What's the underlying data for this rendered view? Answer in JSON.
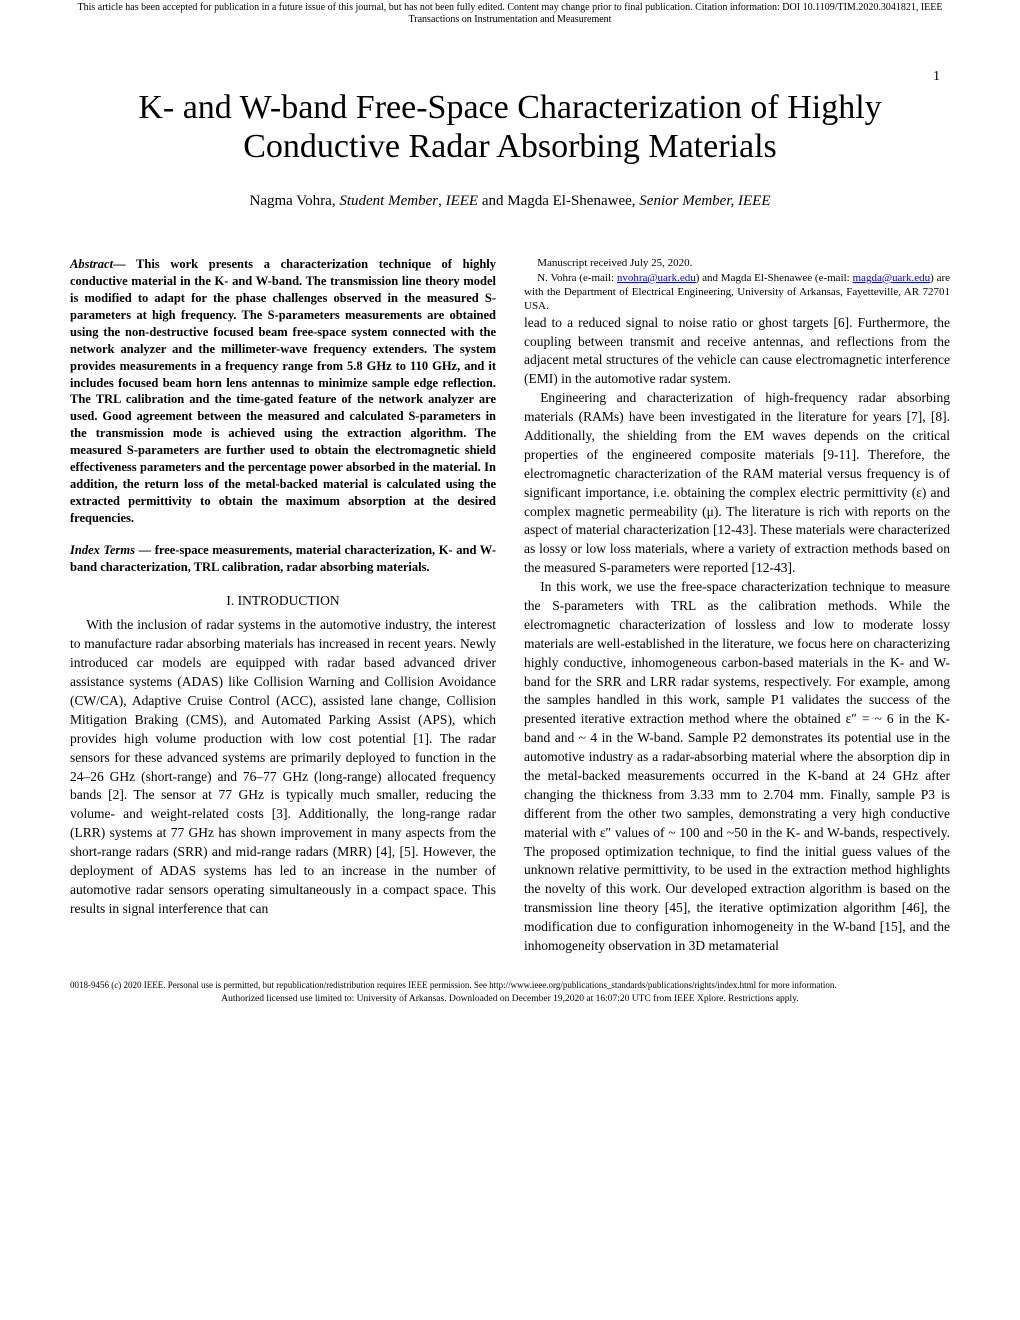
{
  "header": {
    "notice_line1": "This article has been accepted for publication in a future issue of this journal, but has not been fully edited. Content may change prior to final publication. Citation information: DOI 10.1109/TIM.2020.3041821, IEEE",
    "notice_line2": "Transactions on Instrumentation and Measurement",
    "page_number": "1"
  },
  "title": "K- and W-band Free-Space Characterization of Highly Conductive Radar Absorbing Materials",
  "authors": {
    "a1_name": "Nagma Vohra, ",
    "a1_role": "Student Member",
    "sep1": ", ",
    "org1": "IEEE",
    "and": " and ",
    "a2_name": "Magda El-Shenawee, ",
    "a2_role": "Senior Member, IEEE"
  },
  "abstract": {
    "label": "Abstract",
    "dash": "— ",
    "text": "This work presents a characterization technique of highly conductive material in the K- and W-band. The transmission line theory model is modified to adapt for the phase challenges observed in the measured S-parameters at high frequency. The S-parameters measurements are obtained using the non-destructive focused beam free-space system connected with the network analyzer and the millimeter-wave frequency extenders. The system provides measurements in a frequency range from 5.8 GHz to 110 GHz, and it includes focused beam horn lens antennas to minimize sample edge reflection. The TRL calibration and the time-gated feature of the network analyzer are used. Good agreement between the measured and calculated S-parameters in the transmission mode is achieved using the extraction algorithm. The measured S-parameters are further used to obtain the electromagnetic shield effectiveness parameters and the percentage power absorbed in the material. In addition, the return loss of the metal-backed material is calculated using the extracted permittivity to obtain the maximum absorption at the desired frequencies."
  },
  "index_terms": {
    "label": "Index Terms",
    "dash": " — ",
    "text": "free-space measurements, material characterization, K- and W-band characterization, TRL calibration, radar absorbing materials."
  },
  "section1": {
    "heading": "I.   INTRODUCTION",
    "p1": "With the inclusion of radar systems in the automotive industry, the interest to manufacture radar absorbing materials has increased in recent years. Newly introduced car models are equipped with radar based advanced driver assistance systems (ADAS) like Collision Warning and Collision Avoidance (CW/CA), Adaptive Cruise Control (ACC), assisted lane change, Collision Mitigation Braking (CMS), and Automated Parking Assist (APS), which provides high volume production with low cost potential [1]. The radar sensors for these advanced systems are primarily deployed to function in the 24–26 GHz (short-range) and 76–77 GHz (long-range) allocated frequency bands [2]. The sensor at 77 GHz is typically much smaller, reducing the volume- and weight-related costs [3]. Additionally, the long-range radar (LRR) systems at 77 GHz has shown improvement in many aspects from the short-range radars (SRR) and mid-range radars (MRR) [4], [5]. However, the deployment of ADAS systems has led to an increase in the number of automotive radar sensors operating simultaneously in a compact space. This results in signal interference that can",
    "p2": "lead to a reduced signal to noise ratio or ghost targets [6]. Furthermore, the coupling between transmit and receive antennas, and reflections from the adjacent metal structures of the vehicle can cause electromagnetic interference (EMI) in the automotive radar system.",
    "p3": "Engineering and characterization of high-frequency radar absorbing materials (RAMs) have been investigated in the literature for years [7], [8]. Additionally, the shielding from the EM waves depends on the critical properties of the engineered composite materials [9-11]. Therefore, the electromagnetic characterization of the RAM material versus frequency is of significant importance, i.e. obtaining the complex electric permittivity (ε) and complex magnetic permeability (μ). The literature is rich with reports on the aspect of material characterization [12-43]. These materials were characterized as lossy or low loss materials, where a variety of extraction methods based on the measured S-parameters were reported [12-43].",
    "p4": "In this work, we use the free-space characterization technique to measure the S-parameters with TRL as the calibration methods. While the electromagnetic characterization of lossless and low to moderate lossy materials are well-established in the literature, we focus here on characterizing highly conductive, inhomogeneous carbon-based materials in the K- and W-band for the SRR and LRR radar systems, respectively. For example, among the samples handled in this work, sample P1 validates the success of the presented iterative extraction method where the obtained ε″ = ~ 6 in the K-band and ~ 4 in the W-band. Sample P2 demonstrates its potential use in the automotive industry as a radar-absorbing material where the absorption dip in the metal-backed measurements occurred in the K-band at 24 GHz after changing the thickness from 3.33 mm to 2.704 mm. Finally, sample P3 is different from the other two samples, demonstrating a very high conductive material with ε″ values of ~ 100 and ~50 in the K- and W-bands, respectively. The proposed optimization technique, to find the initial guess values of the unknown relative permittivity, to be used in the extraction method highlights the novelty of this work. Our developed extraction algorithm is based on the transmission line theory [45], the iterative optimization algorithm [46], the modification due to configuration inhomogeneity in the W-band [15], and the inhomogeneity observation in 3D metamaterial"
  },
  "manuscript": {
    "line1": "Manuscript received July 25, 2020.",
    "line2_a": "N. Vohra (e-mail: ",
    "email1": "nvohra@uark.edu",
    "line2_b": ") and Magda El-Shenawee (e-mail: ",
    "email2": "magda@uark.edu",
    "line2_c": ") are with the Department of Electrical Engineering, University of Arkansas, Fayetteville, AR 72701 USA."
  },
  "footer": {
    "line1": "0018-9456 (c) 2020 IEEE. Personal use is permitted, but republication/redistribution requires IEEE permission. See http://www.ieee.org/publications_standards/publications/rights/index.html for more information.",
    "line2": "Authorized licensed use limited to: University of Arkansas. Downloaded on December 19,2020 at 16:07:20 UTC from IEEE Xplore.  Restrictions apply."
  },
  "colors": {
    "text": "#000000",
    "background": "#ffffff",
    "link": "#0000ee"
  }
}
